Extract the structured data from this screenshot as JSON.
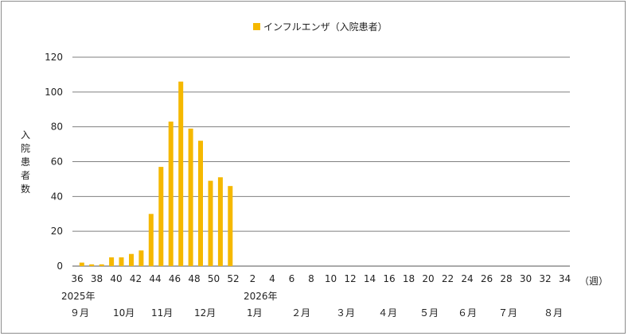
{
  "chart_data": {
    "type": "bar",
    "legend": "インフルエンザ（入院患者）",
    "legend_position": "top",
    "series_color": "#F5B800",
    "ylabel": "入院患者数",
    "ylim": [
      0,
      120
    ],
    "yticks": [
      0,
      20,
      40,
      60,
      80,
      100,
      120
    ],
    "grid": true,
    "x_unit": "（週）",
    "weeks": [
      36,
      37,
      38,
      39,
      40,
      41,
      42,
      43,
      44,
      45,
      46,
      47,
      48,
      49,
      50,
      51,
      52,
      1,
      2,
      3,
      4,
      5,
      6,
      7,
      8,
      9,
      10,
      11,
      12,
      13,
      14,
      15,
      16,
      17,
      18,
      19,
      20,
      21,
      22,
      23,
      24,
      25,
      26,
      27,
      28,
      29,
      30,
      31,
      32,
      33,
      34
    ],
    "values": [
      2,
      1,
      1,
      5,
      5,
      7,
      9,
      30,
      57,
      83,
      106,
      79,
      72,
      49,
      51,
      46,
      null,
      null,
      null,
      null,
      null,
      null,
      null,
      null,
      null,
      null,
      null,
      null,
      null,
      null,
      null,
      null,
      null,
      null,
      null,
      null,
      null,
      null,
      null,
      null,
      null,
      null,
      null,
      null,
      null,
      null,
      null,
      null,
      null,
      null,
      null
    ],
    "x_tick_labels": [
      "36",
      "38",
      "40",
      "42",
      "44",
      "46",
      "48",
      "50",
      "52",
      "2",
      "4",
      "6",
      "8",
      "10",
      "12",
      "14",
      "16",
      "18",
      "20",
      "22",
      "24",
      "26",
      "28",
      "30",
      "32",
      "34"
    ],
    "year_labels": [
      "2025年",
      "2026年"
    ],
    "month_labels": [
      "９月",
      "10月",
      "11月",
      "12月",
      "1月",
      "２月",
      "３月",
      "４月",
      "５月",
      "６月",
      "７月",
      "８月"
    ]
  }
}
